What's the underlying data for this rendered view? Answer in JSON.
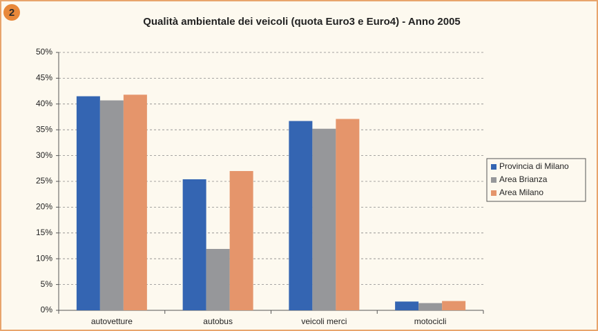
{
  "badge": "2",
  "chart_data": {
    "type": "bar",
    "title": "Qualità ambientale dei veicoli (quota Euro3 e Euro4) - Anno 2005",
    "categories": [
      "autovetture",
      "autobus",
      "veicoli merci",
      "motocicli"
    ],
    "series": [
      {
        "name": "Provincia di Milano",
        "color": "#3465b2",
        "values": [
          41.5,
          25.4,
          36.7,
          1.7
        ]
      },
      {
        "name": "Area Brianza",
        "color": "#96979a",
        "values": [
          40.7,
          11.9,
          35.2,
          1.4
        ]
      },
      {
        "name": "Area Milano",
        "color": "#e5956b",
        "values": [
          41.8,
          27.0,
          37.1,
          1.8
        ]
      }
    ],
    "ylim": [
      0,
      50
    ],
    "yticks": [
      {
        "value": 0,
        "label": "0%"
      },
      {
        "value": 5,
        "label": "5%"
      },
      {
        "value": 10,
        "label": "10%"
      },
      {
        "value": 15,
        "label": "15%"
      },
      {
        "value": 20,
        "label": "20%"
      },
      {
        "value": 25,
        "label": "25%"
      },
      {
        "value": 30,
        "label": "30%"
      },
      {
        "value": 35,
        "label": "35%"
      },
      {
        "value": 40,
        "label": "40%"
      },
      {
        "value": 45,
        "label": "45%"
      },
      {
        "value": 50,
        "label": "50%"
      }
    ],
    "grid": true,
    "legend": "right"
  }
}
